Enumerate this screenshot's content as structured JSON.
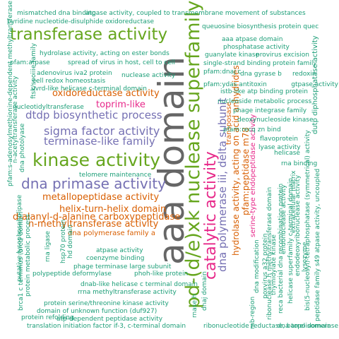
{
  "palette": {
    "teal": "#1b9e77",
    "orange": "#d95f02",
    "purple": "#7570b3",
    "magenta": "#e7298a",
    "green": "#66a61e",
    "gray": "#666666"
  },
  "words": [
    {
      "text": "aaa domain",
      "color": "gray"
    },
    {
      "text": "pd-(d/e)xk nuclease superfamily",
      "color": "green"
    },
    {
      "text": "catalytic activity",
      "color": "magenta"
    },
    {
      "text": "transferase activity",
      "color": "green"
    },
    {
      "text": "kinase activity",
      "color": "green"
    },
    {
      "text": "dna primase activity",
      "color": "purple"
    },
    {
      "text": "dna polymerase iii, delta subunit",
      "color": "purple"
    },
    {
      "text": "sigma factor activity",
      "color": "purple"
    },
    {
      "text": "terminase-like family",
      "color": "purple"
    },
    {
      "text": "dtdp biosynthetic process",
      "color": "purple"
    },
    {
      "text": "oxidoreductase activity",
      "color": "orange"
    },
    {
      "text": "toprim-like",
      "color": "magenta"
    },
    {
      "text": "metallopeptidase activity",
      "color": "orange"
    },
    {
      "text": "helix-turn-helix domain",
      "color": "orange"
    },
    {
      "text": "d-alanyl-d-alanine carboxypeptidase",
      "color": "orange"
    },
    {
      "text": "n-methyltransferase activity",
      "color": "orange"
    },
    {
      "text": "hydrolase activity, acting on acid anhydrides",
      "color": "orange"
    },
    {
      "text": "pfam:peptidase m78",
      "color": "orange"
    },
    {
      "text": "serine-type endopeptidase activity",
      "color": "magenta"
    },
    {
      "text": "transposase",
      "color": "orange"
    },
    {
      "text": "dna polymerase family a",
      "color": "orange"
    },
    {
      "text": "mismatched dna binding",
      "color": "teal"
    },
    {
      "text": "atpase activity, coupled to transmembrane movement of substances",
      "color": "teal"
    },
    {
      "text": "pyridine nucleotide-disulphide oxidoreductase",
      "color": "teal"
    },
    {
      "text": "queuosine biosynthesis protein quec",
      "color": "teal"
    },
    {
      "text": "aaa atpase domain",
      "color": "teal"
    },
    {
      "text": "phosphatase activity",
      "color": "teal"
    },
    {
      "text": "guanylate kinase",
      "color": "teal"
    },
    {
      "text": "provirus excision",
      "color": "teal"
    },
    {
      "text": "single-strand binding protein family",
      "color": "teal"
    },
    {
      "text": "pfam:dnaj c",
      "color": "teal"
    },
    {
      "text": "dna gyrase b",
      "color": "teal"
    },
    {
      "text": "redoxin",
      "color": "teal"
    },
    {
      "text": "pfam:ydas antitoxin",
      "color": "teal"
    },
    {
      "text": "gtpase activity",
      "color": "teal"
    },
    {
      "text": "istb-like atp binding protein",
      "color": "teal"
    },
    {
      "text": "dutp diphosphatase activity",
      "color": "teal"
    },
    {
      "text": "nucleoside metabolic process",
      "color": "teal"
    },
    {
      "text": "phage integrase family",
      "color": "teal"
    },
    {
      "text": "deoxynucleoside kinase",
      "color": "teal"
    },
    {
      "text": "pfam:recq zn bind",
      "color": "teal"
    },
    {
      "text": "flavoprotein",
      "color": "teal"
    },
    {
      "text": "lyase activity",
      "color": "teal"
    },
    {
      "text": "helicase",
      "color": "teal"
    },
    {
      "text": "rna binding",
      "color": "teal"
    },
    {
      "text": "hydrolase activity, acting on ester bonds",
      "color": "teal"
    },
    {
      "text": "pfam:atpase",
      "color": "teal"
    },
    {
      "text": "spread of virus in host, cell to cell",
      "color": "teal"
    },
    {
      "text": "adenovirus iva2 protein",
      "color": "teal"
    },
    {
      "text": "cell redox homeostasis",
      "color": "teal"
    },
    {
      "text": "nuclease activity",
      "color": "teal"
    },
    {
      "text": "uvrd-like helicase c-terminal domain",
      "color": "teal"
    },
    {
      "text": "nucleotidyltransferase",
      "color": "teal"
    },
    {
      "text": "pfam:s-adenosylmethionine-dependent methyltransferase",
      "color": "teal"
    },
    {
      "text": "n-acetyltransferase activity",
      "color": "teal"
    },
    {
      "text": "ftsk/spoiiie family",
      "color": "teal"
    },
    {
      "text": "dna photolyase",
      "color": "teal"
    },
    {
      "text": "telomere maintenance",
      "color": "teal"
    },
    {
      "text": "atpase activity",
      "color": "teal"
    },
    {
      "text": "coenzyme binding",
      "color": "teal"
    },
    {
      "text": "phage terminase large subunit",
      "color": "teal"
    },
    {
      "text": "phoh-like protein",
      "color": "teal"
    },
    {
      "text": "polypeptide deformylase",
      "color": "teal"
    },
    {
      "text": "dnab-like helicase c terminal domain",
      "color": "teal"
    },
    {
      "text": "rrna methyltransferase activity",
      "color": "teal"
    },
    {
      "text": "protein serine/threonine kinase activity",
      "color": "teal"
    },
    {
      "text": "domain of unknown function (duf927)",
      "color": "teal"
    },
    {
      "text": "atp-dependent peptidase activity",
      "color": "teal"
    },
    {
      "text": "protein refolding",
      "color": "teal"
    },
    {
      "text": "translation initiation factor if-3, c-terminal domain",
      "color": "teal"
    },
    {
      "text": "brca1 c terminus (brct) domain",
      "color": "teal"
    },
    {
      "text": "protein metabolic process",
      "color": "teal"
    },
    {
      "text": "putative lysophospholipase",
      "color": "teal"
    },
    {
      "text": "rna ligase",
      "color": "teal"
    },
    {
      "text": "hsp70 protein",
      "color": "teal"
    },
    {
      "text": "hd domain",
      "color": "teal"
    },
    {
      "text": "rnase h",
      "color": "teal"
    },
    {
      "text": "dnaj domain",
      "color": "teal"
    },
    {
      "text": "dna modification",
      "color": "teal"
    },
    {
      "text": "poxvirus a32 protein",
      "color": "teal"
    },
    {
      "text": "thymidylate kinase",
      "color": "teal"
    },
    {
      "text": "dna topoisomerase",
      "color": "teal"
    },
    {
      "text": "ribonucleotide reductase, barrel domain",
      "color": "teal"
    },
    {
      "text": "mb-region",
      "color": "teal"
    },
    {
      "text": "ribonuclease h methyltransferase domain",
      "color": "teal"
    },
    {
      "text": "endonuclease activity",
      "color": "teal"
    },
    {
      "text": "extracellular matrix",
      "color": "teal"
    },
    {
      "text": "reca bacterial dna recombination protein",
      "color": "teal"
    },
    {
      "text": "endodeoxyribonuclease activity",
      "color": "teal"
    },
    {
      "text": "helicase superfamily c-terminal domain",
      "color": "teal"
    },
    {
      "text": "bis(5-nucleosyl)-tetraphosphatase (symmetrical) activity",
      "color": "teal"
    },
    {
      "text": "peptidase family s49 atpase activity, uncoupled",
      "color": "teal"
    },
    {
      "text": "lysozyme",
      "color": "teal"
    }
  ]
}
